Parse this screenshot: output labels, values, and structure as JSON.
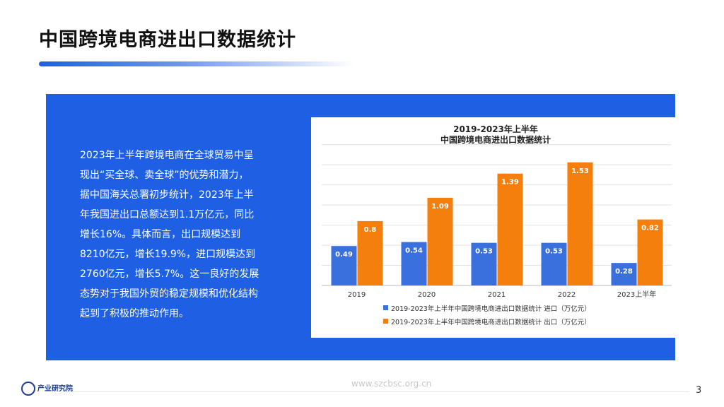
{
  "title": "中国跨境电商进出口数据统计",
  "paragraph": [
    "2023年上半年跨境电商在全球贸易中呈",
    "现出“买全球、卖全球”的优势和潜力，",
    "据中国海关总署初步统计，2023年上半",
    "年我国进出口总额达到1.1万亿元，同比",
    "增长16%。具体而言，出口规模达到",
    "8210亿元，增长19.9%，进口规模达到",
    "2760亿元，增长5.7%。这一良好的发展",
    "态势对于我国外贸的稳定规模和优化结构",
    "起到了积极的推动作用。"
  ],
  "footer": {
    "url": "www.szcbsc.org.cn",
    "page": "3",
    "logo": "产业研究院"
  },
  "chart_data": {
    "type": "bar",
    "title": [
      "2019-2023年上半年",
      "中国跨境电商进出口数据统计"
    ],
    "categories": [
      "2019",
      "2020",
      "2021",
      "2022",
      "2023上半年"
    ],
    "series": [
      {
        "name": "2019-2023年上半年中国跨境电商进出口数据统计 进口（万亿元）",
        "color": "#3a70dd",
        "values": [
          0.49,
          0.54,
          0.53,
          0.53,
          0.28
        ]
      },
      {
        "name": "2019-2023年上半年中国跨境电商进出口数据统计 出口（万亿元）",
        "color": "#f47f0c",
        "values": [
          0.8,
          1.09,
          1.39,
          1.53,
          0.82
        ]
      }
    ],
    "ylim": [
      0,
      1.8
    ],
    "yticks": [
      0,
      0.25,
      0.5,
      0.75,
      1,
      1.25,
      1.5,
      1.75
    ],
    "grid": true
  }
}
